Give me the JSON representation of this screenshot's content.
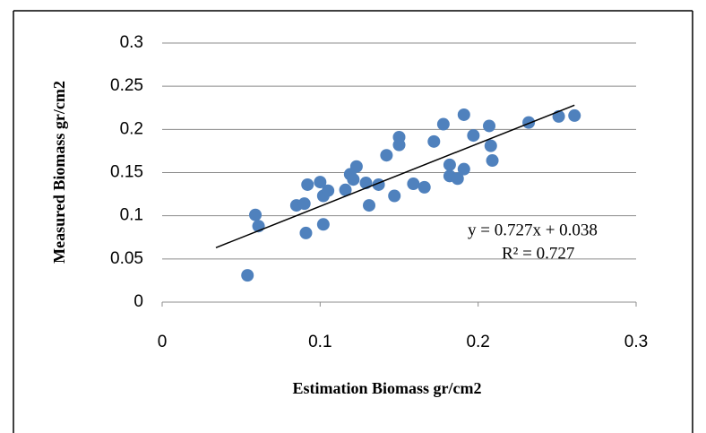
{
  "chart_data": {
    "type": "scatter",
    "x_label": "Estimation Biomass gr/cm2",
    "y_label": "Measured Biomass gr/cm2",
    "xlim": [
      0,
      0.3
    ],
    "xticks": [
      0,
      0.1,
      0.2,
      0.3
    ],
    "ylim": [
      0,
      0.3
    ],
    "yticks": [
      0,
      0.05,
      0.1,
      0.15,
      0.2,
      0.25,
      0.3
    ],
    "grid": true,
    "series": [
      {
        "color": "#4f81bd",
        "x": [
          0.054,
          0.059,
          0.061,
          0.085,
          0.09,
          0.092,
          0.091,
          0.1,
          0.102,
          0.105,
          0.102,
          0.116,
          0.119,
          0.123,
          0.121,
          0.129,
          0.131,
          0.137,
          0.142,
          0.147,
          0.15,
          0.15,
          0.159,
          0.166,
          0.172,
          0.178,
          0.182,
          0.182,
          0.187,
          0.191,
          0.191,
          0.197,
          0.207,
          0.208,
          0.209,
          0.232,
          0.251,
          0.261
        ],
        "values": [
          0.031,
          0.101,
          0.088,
          0.112,
          0.114,
          0.136,
          0.08,
          0.139,
          0.123,
          0.129,
          0.09,
          0.13,
          0.148,
          0.157,
          0.142,
          0.138,
          0.112,
          0.136,
          0.17,
          0.123,
          0.182,
          0.191,
          0.137,
          0.133,
          0.186,
          0.206,
          0.159,
          0.146,
          0.143,
          0.154,
          0.217,
          0.193,
          0.204,
          0.181,
          0.164,
          0.208,
          0.215,
          0.216
        ]
      }
    ],
    "trendline": {
      "color": "#000000",
      "x": [
        0.034,
        0.261
      ],
      "values": [
        0.063,
        0.228
      ]
    },
    "annotations": [
      "y = 0.727x + 0.038",
      "R² = 0.727"
    ]
  }
}
